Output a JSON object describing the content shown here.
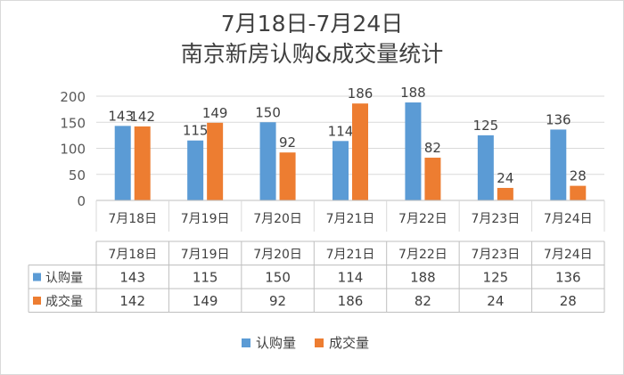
{
  "chart_data": {
    "type": "bar",
    "title_line1": "7月18日-7月24日",
    "title_line2": "南京新房认购&成交量统计",
    "categories": [
      "7月18日",
      "7月19日",
      "7月20日",
      "7月21日",
      "7月22日",
      "7月23日",
      "7月24日"
    ],
    "series": [
      {
        "name": "认购量",
        "color": "#5b9bd5",
        "values": [
          143,
          115,
          150,
          114,
          188,
          125,
          136
        ]
      },
      {
        "name": "成交量",
        "color": "#ed7d31",
        "values": [
          142,
          149,
          92,
          186,
          82,
          24,
          28
        ]
      }
    ],
    "yticks": [
      0,
      50,
      100,
      150,
      200
    ],
    "ylim": [
      0,
      200
    ],
    "legend_position": "bottom",
    "data_table": true
  }
}
